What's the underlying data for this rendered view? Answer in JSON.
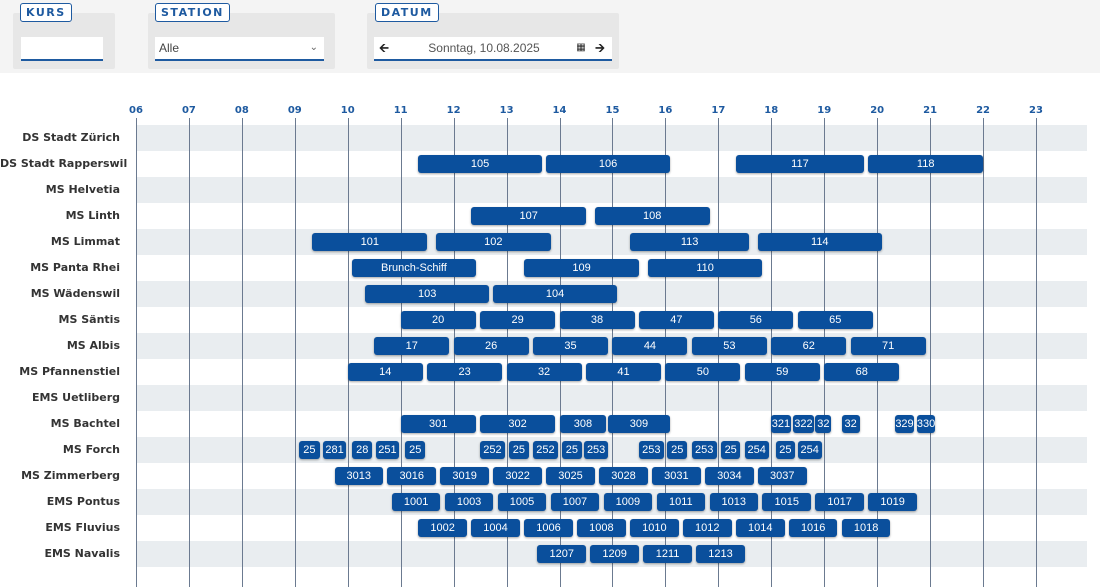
{
  "filters": {
    "kurs": {
      "label": "KURS",
      "value": ""
    },
    "station": {
      "label": "STATION",
      "value": "Alle"
    },
    "datum": {
      "label": "DATUM",
      "value": "Sonntag, 10.08.2025",
      "prev_icon": "arrow-left-icon",
      "calendar_icon": "calendar-icon",
      "next_icon": "arrow-right-icon"
    }
  },
  "colors": {
    "accent": "#1e5aa0",
    "bar": "#0a4f9c",
    "row_alt": "#e9edf0"
  },
  "hours": [
    "06",
    "07",
    "08",
    "09",
    "10",
    "11",
    "12",
    "13",
    "14",
    "15",
    "16",
    "17",
    "18",
    "19",
    "20",
    "21",
    "22",
    "23"
  ],
  "ships": [
    {
      "name": "DS Stadt Zürich",
      "trips": []
    },
    {
      "name": "DS Stadt Rapperswil",
      "trips": [
        [
          "105",
          "11:20",
          "13:40"
        ],
        [
          "106",
          "13:45",
          "16:05"
        ],
        [
          "117",
          "17:20",
          "19:45"
        ],
        [
          "118",
          "19:50",
          "22:00"
        ]
      ]
    },
    {
      "name": "MS Helvetia",
      "trips": []
    },
    {
      "name": "MS Linth",
      "trips": [
        [
          "107",
          "12:20",
          "14:30"
        ],
        [
          "108",
          "14:40",
          "16:50"
        ]
      ]
    },
    {
      "name": "MS Limmat",
      "trips": [
        [
          "101",
          "09:20",
          "11:30"
        ],
        [
          "102",
          "11:40",
          "13:50"
        ],
        [
          "113",
          "15:20",
          "17:35"
        ],
        [
          "114",
          "17:45",
          "20:05"
        ]
      ]
    },
    {
      "name": "MS Panta Rhei",
      "trips": [
        [
          "Brunch-Schiff",
          "10:05",
          "12:25"
        ],
        [
          "109",
          "13:20",
          "15:30"
        ],
        [
          "110",
          "15:40",
          "17:50"
        ]
      ]
    },
    {
      "name": "MS Wädenswil",
      "trips": [
        [
          "103",
          "10:20",
          "12:40"
        ],
        [
          "104",
          "12:45",
          "15:05"
        ]
      ]
    },
    {
      "name": "MS Säntis",
      "trips": [
        [
          "20",
          "11:00",
          "12:25"
        ],
        [
          "29",
          "12:30",
          "13:55"
        ],
        [
          "38",
          "14:00",
          "15:25"
        ],
        [
          "47",
          "15:30",
          "16:55"
        ],
        [
          "56",
          "17:00",
          "18:25"
        ],
        [
          "65",
          "18:30",
          "19:55"
        ]
      ]
    },
    {
      "name": "MS Albis",
      "trips": [
        [
          "17",
          "10:30",
          "11:55"
        ],
        [
          "26",
          "12:00",
          "13:25"
        ],
        [
          "35",
          "13:30",
          "14:55"
        ],
        [
          "44",
          "15:00",
          "16:25"
        ],
        [
          "53",
          "16:30",
          "17:55"
        ],
        [
          "62",
          "18:00",
          "19:25"
        ],
        [
          "71",
          "19:30",
          "20:55"
        ]
      ]
    },
    {
      "name": "MS Pfannenstiel",
      "trips": [
        [
          "14",
          "10:00",
          "11:25"
        ],
        [
          "23",
          "11:30",
          "12:55"
        ],
        [
          "32",
          "13:00",
          "14:25"
        ],
        [
          "41",
          "14:30",
          "15:55"
        ],
        [
          "50",
          "16:00",
          "17:25"
        ],
        [
          "59",
          "17:30",
          "18:55"
        ],
        [
          "68",
          "19:00",
          "20:25"
        ]
      ]
    },
    {
      "name": "EMS Uetliberg",
      "trips": []
    },
    {
      "name": "MS Bachtel",
      "trips": [
        [
          "301",
          "11:00",
          "12:25"
        ],
        [
          "302",
          "12:30",
          "13:55"
        ],
        [
          "308",
          "14:00",
          "14:53"
        ],
        [
          "309",
          "14:55",
          "16:05"
        ],
        [
          "321",
          "18:00",
          "18:22"
        ],
        [
          "322",
          "18:25",
          "18:48"
        ],
        [
          "32",
          "18:50",
          "19:08"
        ],
        [
          "32",
          "19:20",
          "19:40"
        ],
        [
          "329",
          "20:20",
          "20:42"
        ],
        [
          "330",
          "20:45",
          "21:05"
        ]
      ]
    },
    {
      "name": "MS Forch",
      "trips": [
        [
          "25",
          "09:05",
          "09:28"
        ],
        [
          "281",
          "09:32",
          "09:58"
        ],
        [
          "28",
          "10:05",
          "10:28"
        ],
        [
          "251",
          "10:32",
          "10:58"
        ],
        [
          "25",
          "11:05",
          "11:28"
        ],
        [
          "252",
          "12:30",
          "12:58"
        ],
        [
          "25",
          "13:03",
          "13:25"
        ],
        [
          "252",
          "13:30",
          "13:58"
        ],
        [
          "25",
          "14:03",
          "14:25"
        ],
        [
          "253",
          "14:28",
          "14:55"
        ],
        [
          "253",
          "15:30",
          "15:58"
        ],
        [
          "25",
          "16:02",
          "16:25"
        ],
        [
          "253",
          "16:30",
          "16:58"
        ],
        [
          "25",
          "17:03",
          "17:25"
        ],
        [
          "254",
          "17:30",
          "17:57"
        ],
        [
          "25",
          "18:05",
          "18:27"
        ],
        [
          "254",
          "18:30",
          "18:57"
        ]
      ]
    },
    {
      "name": "MS Zimmerberg",
      "trips": [
        [
          "3013",
          "09:45",
          "10:40"
        ],
        [
          "3016",
          "10:45",
          "11:40"
        ],
        [
          "3019",
          "11:45",
          "12:40"
        ],
        [
          "3022",
          "12:45",
          "13:40"
        ],
        [
          "3025",
          "13:45",
          "14:40"
        ],
        [
          "3028",
          "14:45",
          "15:40"
        ],
        [
          "3031",
          "15:45",
          "16:40"
        ],
        [
          "3034",
          "16:45",
          "17:40"
        ],
        [
          "3037",
          "17:45",
          "18:40"
        ]
      ]
    },
    {
      "name": "EMS Pontus",
      "trips": [
        [
          "1001",
          "10:50",
          "11:45"
        ],
        [
          "1003",
          "11:50",
          "12:45"
        ],
        [
          "1005",
          "12:50",
          "13:45"
        ],
        [
          "1007",
          "13:50",
          "14:45"
        ],
        [
          "1009",
          "14:50",
          "15:45"
        ],
        [
          "1011",
          "15:50",
          "16:45"
        ],
        [
          "1013",
          "16:50",
          "17:45"
        ],
        [
          "1015",
          "17:50",
          "18:45"
        ],
        [
          "1017",
          "18:50",
          "19:45"
        ],
        [
          "1019",
          "19:50",
          "20:45"
        ]
      ]
    },
    {
      "name": "EMS Fluvius",
      "trips": [
        [
          "1002",
          "11:20",
          "12:15"
        ],
        [
          "1004",
          "12:20",
          "13:15"
        ],
        [
          "1006",
          "13:20",
          "14:15"
        ],
        [
          "1008",
          "14:20",
          "15:15"
        ],
        [
          "1010",
          "15:20",
          "16:15"
        ],
        [
          "1012",
          "16:20",
          "17:15"
        ],
        [
          "1014",
          "17:20",
          "18:15"
        ],
        [
          "1016",
          "18:20",
          "19:15"
        ],
        [
          "1018",
          "19:20",
          "20:15"
        ]
      ]
    },
    {
      "name": "EMS Navalis",
      "trips": [
        [
          "1207",
          "13:35",
          "14:30"
        ],
        [
          "1209",
          "14:35",
          "15:30"
        ],
        [
          "1211",
          "15:35",
          "16:30"
        ],
        [
          "1213",
          "16:35",
          "17:30"
        ]
      ]
    }
  ]
}
